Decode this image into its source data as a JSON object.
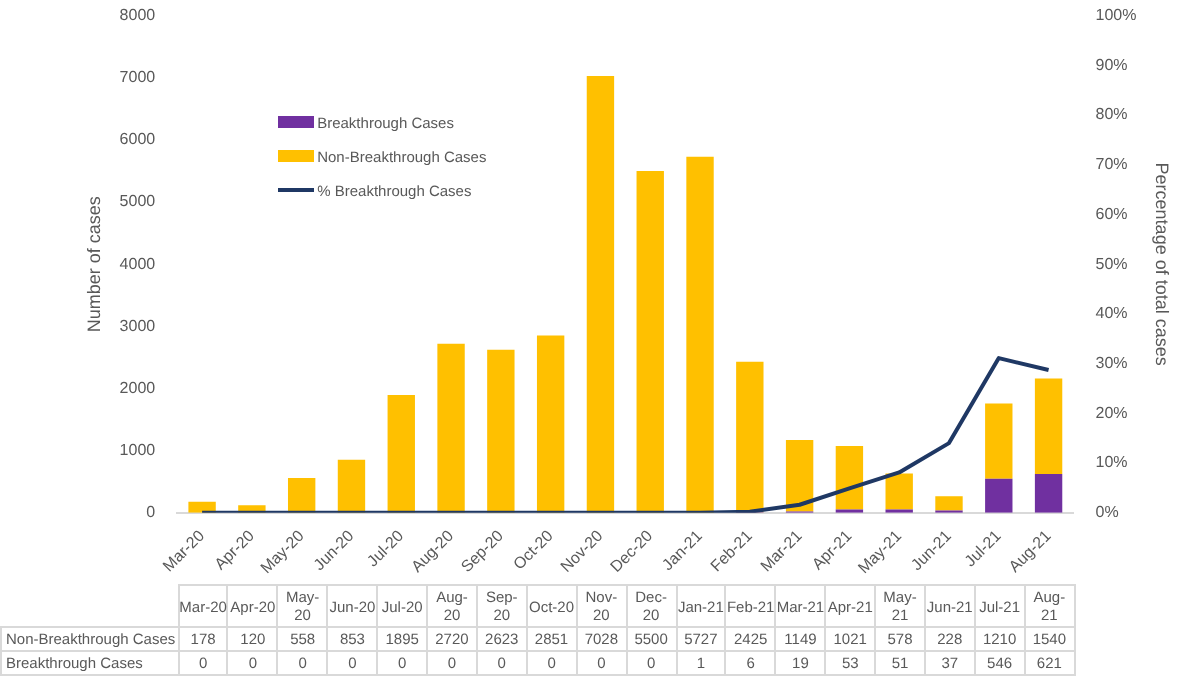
{
  "chart_data": {
    "type": "bar",
    "stacked": true,
    "categories": [
      "Mar-20",
      "Apr-20",
      "May-20",
      "Jun-20",
      "Jul-20",
      "Aug-20",
      "Sep-20",
      "Oct-20",
      "Nov-20",
      "Dec-20",
      "Jan-21",
      "Feb-21",
      "Mar-21",
      "Apr-21",
      "May-21",
      "Jun-21",
      "Jul-21",
      "Aug-21"
    ],
    "series": [
      {
        "name": "Breakthrough Cases",
        "color": "#7030a0",
        "values": [
          0,
          0,
          0,
          0,
          0,
          0,
          0,
          0,
          0,
          0,
          1,
          6,
          19,
          53,
          51,
          37,
          546,
          621
        ],
        "value_labels": [
          "0",
          "0",
          "0",
          "0",
          "0",
          "0",
          "0",
          "0",
          "0",
          "0",
          "1",
          "6",
          "19",
          "53",
          "51",
          "37",
          "546",
          "621"
        ]
      },
      {
        "name": "Non-Breakthrough Cases",
        "color": "#ffc000",
        "values": [
          178,
          120,
          558,
          853,
          1895,
          2720,
          2623,
          2851,
          7028,
          5500,
          5727,
          2425,
          1149,
          1021,
          578,
          228,
          1210,
          1540
        ],
        "value_labels": [
          "178",
          "120",
          "558",
          "853",
          "1895",
          "2720",
          "2623",
          "2851",
          "7028",
          "5500",
          "5727",
          "2425",
          "1149",
          "1021",
          "578",
          "228",
          "1210",
          "1540"
        ]
      },
      {
        "name": "% Breakthrough Cases",
        "type": "line",
        "axis": "y2",
        "color": "#1f3864",
        "values": [
          0,
          0,
          0,
          0,
          0,
          0,
          0,
          0,
          0,
          0,
          0,
          0.2,
          1.6,
          4.9,
          8.1,
          14,
          31.1,
          28.7
        ]
      }
    ],
    "ylabel": "Number of cases",
    "y2label": "Percentage of total cases",
    "ylim": [
      0,
      8000
    ],
    "yticks": [
      0,
      1000,
      2000,
      3000,
      4000,
      5000,
      6000,
      7000,
      8000
    ],
    "y2lim": [
      0,
      100
    ],
    "y2ticks": [
      {
        "value": 0,
        "label": "0%"
      },
      {
        "value": 10,
        "label": "10%"
      },
      {
        "value": 20,
        "label": "20%"
      },
      {
        "value": 30,
        "label": "30%"
      },
      {
        "value": 40,
        "label": "40%"
      },
      {
        "value": 50,
        "label": "50%"
      },
      {
        "value": 60,
        "label": "60%"
      },
      {
        "value": 70,
        "label": "70%"
      },
      {
        "value": 80,
        "label": "80%"
      },
      {
        "value": 90,
        "label": "90%"
      },
      {
        "value": 100,
        "label": "100%"
      }
    ],
    "grid": false,
    "legend": "top left",
    "marker": "none",
    "line_style": "solid"
  }
}
